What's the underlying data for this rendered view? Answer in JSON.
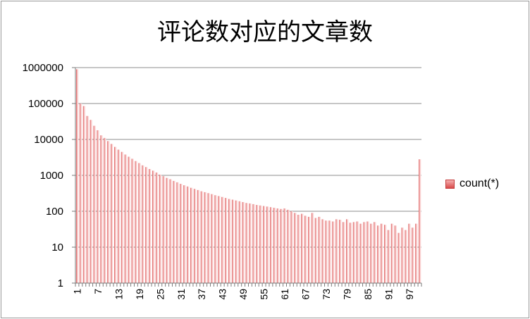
{
  "chart_data": {
    "type": "bar",
    "title": "评论数对应的文章数",
    "scale": "log",
    "ylim": [
      1,
      1000000
    ],
    "yticks": [
      "1",
      "10",
      "100",
      "1000",
      "10000",
      "100000",
      "1000000"
    ],
    "xtick_labels": [
      "1",
      "7",
      "13",
      "19",
      "25",
      "31",
      "37",
      "43",
      "49",
      "55",
      "61",
      "67",
      "73",
      "79",
      "85",
      "91",
      "97"
    ],
    "x_start": 1,
    "x_end": 100,
    "legend_position": "right",
    "grid": true,
    "colors": {
      "bar_dark": "#d94b4b",
      "bar_light": "#f6c2c2",
      "grid": "#8c8c8c"
    },
    "series": [
      {
        "name": "count(*)",
        "values": [
          900000,
          100000,
          85000,
          45000,
          35000,
          24000,
          18000,
          13000,
          11000,
          9000,
          7500,
          6200,
          5200,
          4500,
          3800,
          3300,
          2900,
          2500,
          2200,
          1900,
          1700,
          1500,
          1350,
          1200,
          1050,
          950,
          850,
          780,
          700,
          640,
          580,
          530,
          490,
          450,
          420,
          390,
          360,
          340,
          320,
          300,
          280,
          265,
          250,
          235,
          220,
          210,
          200,
          190,
          180,
          170,
          165,
          158,
          150,
          145,
          140,
          135,
          130,
          125,
          120,
          116,
          120,
          110,
          100,
          90,
          80,
          85,
          75,
          70,
          90,
          65,
          70,
          60,
          55,
          55,
          52,
          60,
          58,
          50,
          60,
          48,
          50,
          52,
          45,
          50,
          52,
          45,
          50,
          40,
          45,
          42,
          30,
          45,
          40,
          25,
          35,
          30,
          45,
          35,
          45,
          2800
        ]
      }
    ]
  }
}
